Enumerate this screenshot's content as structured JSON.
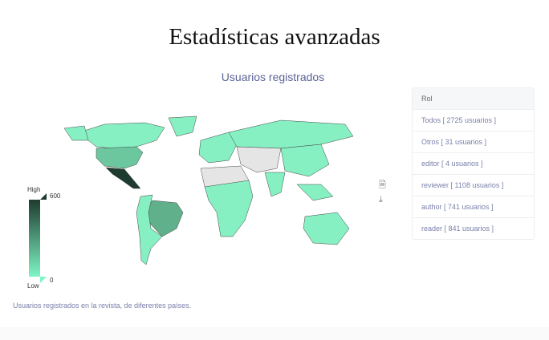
{
  "page": {
    "title": "Estadísticas avanzadas"
  },
  "chart": {
    "title": "Usuarios registrados",
    "caption": "Usuarios registrados en la revista, de diferentes países.",
    "legend": {
      "high_label": "High",
      "low_label": "Low",
      "max": "600",
      "min": "0",
      "high_color": "#1e3b2f",
      "low_color": "#7ff5c4"
    },
    "tools": {
      "export_icon": "document-icon",
      "download_icon": "download-icon"
    }
  },
  "roles": {
    "header": "Rol",
    "items": [
      {
        "label": "Todos [ 2725 usuarios ]"
      },
      {
        "label": "Otros [ 31 usuarios ]"
      },
      {
        "label": "editor [ 4 usuarios ]"
      },
      {
        "label": "reviewer [ 1108 usuarios ]"
      },
      {
        "label": "author [ 741 usuarios ]"
      },
      {
        "label": "reader [ 841 usuarios ]"
      }
    ]
  }
}
